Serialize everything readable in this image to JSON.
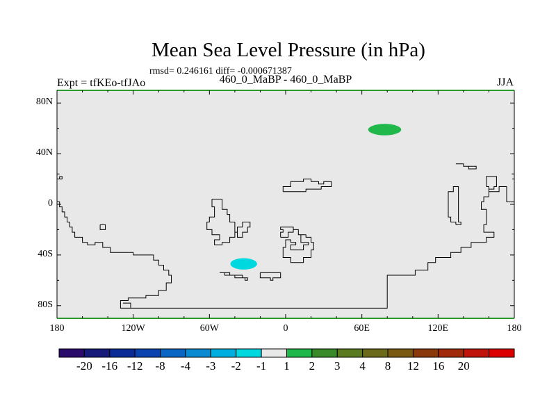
{
  "title": "Mean Sea Level Pressure (in hPa)",
  "stats_line": "rmsd= 0.246161 diff= -0.000671387",
  "left_label": "Expt = tfKEo-tfJAo",
  "center_label": "460_0_MaBP - 460_0_MaBP",
  "right_label": "JJA",
  "map": {
    "lon_range": [
      -180,
      180
    ],
    "lat_range": [
      -90,
      90
    ],
    "background_color": "#e8e8e8",
    "coastline_color": "#000000",
    "border_color": "#2a9a2a",
    "y_ticks": [
      {
        "lat": 80,
        "label": "80N"
      },
      {
        "lat": 40,
        "label": "40N"
      },
      {
        "lat": 0,
        "label": "0"
      },
      {
        "lat": -40,
        "label": "40S"
      },
      {
        "lat": -80,
        "label": "80S"
      }
    ],
    "x_ticks": [
      {
        "lon": -180,
        "label": "180"
      },
      {
        "lon": -120,
        "label": "120W"
      },
      {
        "lon": -60,
        "label": "60W"
      },
      {
        "lon": 0,
        "label": "0"
      },
      {
        "lon": 60,
        "label": "60E"
      },
      {
        "lon": 120,
        "label": "120E"
      },
      {
        "lon": 180,
        "label": "180"
      }
    ],
    "anomalies": [
      {
        "name": "positive-anomaly-north",
        "lon": 78,
        "lat": 59,
        "lon_radius": 13,
        "lat_radius": 4.5,
        "color": "#20b84a",
        "category": "1 to 2"
      },
      {
        "name": "negative-anomaly-south",
        "lon": -33,
        "lat": -47,
        "lon_radius": 10.5,
        "lat_radius": 4.5,
        "color": "#00d8e0",
        "category": "-2 to -1"
      }
    ],
    "coastlines": [
      [
        [
          -180,
          2
        ],
        [
          -178,
          2
        ],
        [
          -178,
          -2
        ],
        [
          -176,
          -2
        ],
        [
          -176,
          -6
        ],
        [
          -174,
          -6
        ],
        [
          -174,
          -10
        ],
        [
          -172,
          -10
        ],
        [
          -172,
          -14
        ],
        [
          -170,
          -14
        ],
        [
          -170,
          -18
        ],
        [
          -168,
          -18
        ],
        [
          -168,
          -22
        ],
        [
          -166,
          -22
        ],
        [
          -166,
          -26
        ],
        [
          -160,
          -26
        ],
        [
          -160,
          -30
        ],
        [
          -156,
          -30
        ],
        [
          -156,
          -32
        ],
        [
          -150,
          -32
        ],
        [
          -150,
          -30
        ],
        [
          -144,
          -30
        ],
        [
          -144,
          -34
        ],
        [
          -138,
          -34
        ],
        [
          -138,
          -38
        ],
        [
          -120,
          -38
        ],
        [
          -120,
          -40
        ],
        [
          -104,
          -40
        ],
        [
          -104,
          -44
        ],
        [
          -100,
          -44
        ],
        [
          -100,
          -48
        ],
        [
          -96,
          -48
        ],
        [
          -96,
          -52
        ],
        [
          -92,
          -52
        ],
        [
          -92,
          -56
        ],
        [
          -90,
          -56
        ],
        [
          -90,
          -62
        ],
        [
          -94,
          -62
        ],
        [
          -94,
          -68
        ],
        [
          -100,
          -68
        ],
        [
          -100,
          -72
        ],
        [
          -110,
          -72
        ],
        [
          -110,
          -74
        ],
        [
          -124,
          -74
        ],
        [
          -124,
          -76
        ],
        [
          -130,
          -76
        ],
        [
          -130,
          -82
        ],
        [
          80,
          -82
        ],
        [
          80,
          -56
        ],
        [
          102,
          -56
        ],
        [
          102,
          -52
        ],
        [
          112,
          -52
        ],
        [
          112,
          -46
        ],
        [
          118,
          -46
        ],
        [
          118,
          -42
        ],
        [
          130,
          -42
        ],
        [
          130,
          -38
        ],
        [
          138,
          -38
        ],
        [
          138,
          -34
        ],
        [
          146,
          -34
        ],
        [
          146,
          -30
        ],
        [
          158,
          -30
        ],
        [
          158,
          -26
        ],
        [
          164,
          -26
        ],
        [
          164,
          -22
        ],
        [
          156,
          -22
        ],
        [
          156,
          -16
        ],
        [
          158,
          -16
        ],
        [
          158,
          -4
        ],
        [
          154,
          -4
        ],
        [
          154,
          2
        ],
        [
          156,
          2
        ],
        [
          156,
          6
        ],
        [
          160,
          6
        ],
        [
          160,
          10
        ],
        [
          168,
          10
        ],
        [
          168,
          14
        ],
        [
          174,
          14
        ],
        [
          174,
          2
        ],
        [
          180,
          2
        ]
      ],
      [
        [
          -128,
          -78
        ],
        [
          -122,
          -78
        ],
        [
          -122,
          -82
        ]
      ],
      [
        [
          -178,
          22
        ],
        [
          -176,
          22
        ],
        [
          -176,
          20
        ],
        [
          -178,
          20
        ],
        [
          -178,
          22
        ]
      ],
      [
        [
          -180,
          24
        ],
        [
          -178,
          24
        ]
      ],
      [
        [
          -146,
          -16
        ],
        [
          -142,
          -16
        ],
        [
          -142,
          -20
        ],
        [
          -146,
          -20
        ],
        [
          -146,
          -16
        ]
      ],
      [
        [
          -56,
          4
        ],
        [
          -50,
          4
        ],
        [
          -50,
          -4
        ],
        [
          -46,
          -4
        ],
        [
          -46,
          -8
        ],
        [
          -44,
          -8
        ],
        [
          -44,
          -14
        ],
        [
          -40,
          -14
        ],
        [
          -40,
          -22
        ],
        [
          -38,
          -22
        ],
        [
          -38,
          -26
        ],
        [
          -34,
          -26
        ],
        [
          -34,
          -22
        ],
        [
          -30,
          -22
        ],
        [
          -30,
          -18
        ],
        [
          -28,
          -18
        ],
        [
          -28,
          -14
        ],
        [
          -34,
          -14
        ],
        [
          -34,
          -18
        ],
        [
          -38,
          -18
        ],
        [
          -38,
          -22
        ],
        [
          -40,
          -22
        ],
        [
          -40,
          -26
        ],
        [
          -44,
          -26
        ],
        [
          -44,
          -30
        ],
        [
          -50,
          -30
        ],
        [
          -50,
          -32
        ],
        [
          -56,
          -32
        ],
        [
          -56,
          -28
        ],
        [
          -52,
          -28
        ],
        [
          -52,
          -24
        ],
        [
          -58,
          -24
        ],
        [
          -58,
          -20
        ],
        [
          -62,
          -20
        ],
        [
          -62,
          -14
        ],
        [
          -60,
          -14
        ],
        [
          -60,
          -10
        ],
        [
          -56,
          -10
        ],
        [
          -56,
          -2
        ],
        [
          -58,
          -2
        ],
        [
          -58,
          4
        ],
        [
          -56,
          4
        ]
      ],
      [
        [
          -52,
          -54
        ],
        [
          -48,
          -54
        ],
        [
          -48,
          -56
        ],
        [
          -40,
          -56
        ],
        [
          -40,
          -58
        ],
        [
          -32,
          -58
        ],
        [
          -32,
          -60
        ],
        [
          -30,
          -60
        ],
        [
          -30,
          -58
        ],
        [
          -34,
          -58
        ],
        [
          -34,
          -56
        ],
        [
          -44,
          -56
        ],
        [
          -44,
          -54
        ],
        [
          -52,
          -54
        ]
      ],
      [
        [
          -20,
          -54
        ],
        [
          -20,
          -58
        ],
        [
          -12,
          -58
        ],
        [
          -12,
          -60
        ],
        [
          -10,
          -60
        ],
        [
          -10,
          -58
        ],
        [
          -4,
          -58
        ],
        [
          -4,
          -54
        ],
        [
          -20,
          -54
        ]
      ],
      [
        [
          -2,
          10
        ],
        [
          -2,
          14
        ],
        [
          4,
          14
        ],
        [
          4,
          18
        ],
        [
          14,
          18
        ],
        [
          14,
          20
        ],
        [
          20,
          20
        ],
        [
          20,
          18
        ],
        [
          26,
          18
        ],
        [
          26,
          16
        ],
        [
          30,
          16
        ],
        [
          30,
          18
        ],
        [
          36,
          18
        ],
        [
          36,
          14
        ],
        [
          28,
          14
        ],
        [
          28,
          12
        ],
        [
          16,
          12
        ],
        [
          16,
          10
        ],
        [
          -2,
          10
        ]
      ],
      [
        [
          -4,
          -26
        ],
        [
          2,
          -26
        ],
        [
          2,
          -22
        ],
        [
          6,
          -22
        ],
        [
          6,
          -20
        ],
        [
          10,
          -20
        ],
        [
          10,
          -24
        ],
        [
          12,
          -24
        ],
        [
          12,
          -30
        ],
        [
          18,
          -30
        ],
        [
          18,
          -32
        ],
        [
          14,
          -32
        ],
        [
          14,
          -36
        ],
        [
          4,
          -36
        ],
        [
          4,
          -32
        ],
        [
          8,
          -32
        ],
        [
          8,
          -30
        ],
        [
          4,
          -30
        ],
        [
          4,
          -28
        ],
        [
          0,
          -28
        ],
        [
          0,
          -34
        ],
        [
          -2,
          -34
        ],
        [
          -2,
          -42
        ],
        [
          4,
          -42
        ],
        [
          4,
          -46
        ],
        [
          14,
          -46
        ],
        [
          14,
          -42
        ],
        [
          20,
          -42
        ],
        [
          20,
          -36
        ],
        [
          22,
          -36
        ],
        [
          22,
          -30
        ],
        [
          20,
          -30
        ],
        [
          20,
          -26
        ],
        [
          16,
          -26
        ],
        [
          16,
          -24
        ],
        [
          10,
          -24
        ],
        [
          10,
          -20
        ],
        [
          6,
          -20
        ],
        [
          6,
          -18
        ],
        [
          -4,
          -18
        ],
        [
          -4,
          -20
        ],
        [
          -2,
          -20
        ],
        [
          -2,
          -22
        ],
        [
          -4,
          -22
        ],
        [
          -4,
          -26
        ]
      ],
      [
        [
          134,
          -16
        ],
        [
          134,
          -14
        ],
        [
          130,
          -14
        ],
        [
          130,
          -10
        ],
        [
          128,
          -10
        ],
        [
          128,
          10
        ],
        [
          132,
          10
        ],
        [
          132,
          14
        ],
        [
          136,
          14
        ],
        [
          136,
          -14
        ],
        [
          138,
          -14
        ],
        [
          138,
          -16
        ],
        [
          134,
          -16
        ]
      ],
      [
        [
          134,
          32
        ],
        [
          140,
          32
        ],
        [
          140,
          30
        ],
        [
          150,
          30
        ],
        [
          150,
          28
        ],
        [
          144,
          28
        ],
        [
          144,
          30
        ],
        [
          140,
          30
        ],
        [
          140,
          32
        ],
        [
          134,
          32
        ]
      ],
      [
        [
          158,
          14
        ],
        [
          158,
          22
        ],
        [
          166,
          22
        ],
        [
          166,
          14
        ],
        [
          164,
          14
        ],
        [
          164,
          12
        ],
        [
          160,
          12
        ],
        [
          160,
          14
        ],
        [
          158,
          14
        ]
      ],
      [
        [
          160,
          12
        ],
        [
          160,
          10
        ]
      ],
      [
        [
          178,
          24
        ],
        [
          180,
          24
        ],
        [
          180,
          20
        ]
      ]
    ]
  },
  "colorbar": {
    "colors": [
      "#2a0a6a",
      "#161a78",
      "#0a2a96",
      "#0a44b0",
      "#0a66c4",
      "#0a8ad0",
      "#00aee0",
      "#00d8e0",
      "#e8e8e8",
      "#20b84a",
      "#3a8a2a",
      "#5a7a20",
      "#6a6a1a",
      "#7a5a10",
      "#8a3a0a",
      "#a02a0a",
      "#c0140a",
      "#dc0000"
    ],
    "labels": [
      "-20",
      "-16",
      "-12",
      "-8",
      "-4",
      "-3",
      "-2",
      "-1",
      "1",
      "2",
      "3",
      "4",
      "8",
      "12",
      "16",
      "20"
    ]
  }
}
